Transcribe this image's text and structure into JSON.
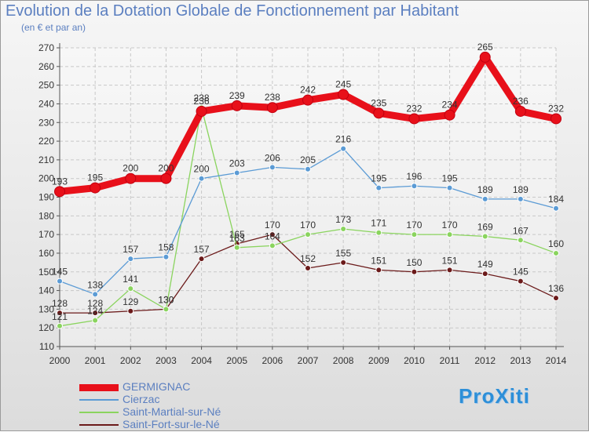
{
  "title": "Evolution de la Dotation Globale de Fonctionnement par Habitant",
  "subtitle": "(en € et par an)",
  "logo": "ProXiti",
  "chart_data": {
    "type": "line",
    "title": "Evolution de la Dotation Globale de Fonctionnement par Habitant",
    "subtitle": "(en € et par an)",
    "xlabel": "",
    "ylabel": "",
    "ylim": [
      110,
      270
    ],
    "yticks": [
      110,
      120,
      130,
      140,
      150,
      160,
      170,
      180,
      190,
      200,
      210,
      220,
      230,
      240,
      250,
      260,
      270
    ],
    "grid": true,
    "legend": "bottom-left",
    "x": [
      "2000",
      "2001",
      "2002",
      "2003",
      "2004",
      "2005",
      "2006",
      "2007",
      "2008",
      "2009",
      "2010",
      "2011",
      "2012",
      "2013",
      "2014"
    ],
    "series": [
      {
        "name": "Saint-Fort-sur-le-Né",
        "color": "#6b1a1a",
        "values": [
          128,
          128,
          129,
          130,
          157,
          165,
          170,
          152,
          155,
          151,
          150,
          151,
          149,
          145,
          136
        ]
      },
      {
        "name": "Saint-Martial-sur-Né",
        "color": "#8ad45e",
        "values": [
          121,
          124,
          141,
          130,
          238,
          163,
          164,
          170,
          173,
          171,
          170,
          170,
          169,
          167,
          160
        ]
      },
      {
        "name": "Cierzac",
        "color": "#5b9bd5",
        "values": [
          145,
          138,
          157,
          158,
          200,
          203,
          206,
          205,
          216,
          195,
          196,
          195,
          189,
          189,
          184
        ]
      },
      {
        "name": "GERMIGNAC",
        "color": "#e8101a",
        "values": [
          193,
          195,
          200,
          200,
          236,
          239,
          238,
          242,
          245,
          235,
          232,
          234,
          265,
          236,
          232
        ]
      }
    ],
    "legend_order": [
      "GERMIGNAC",
      "Cierzac",
      "Saint-Martial-sur-Né",
      "Saint-Fort-sur-le-Né"
    ]
  }
}
